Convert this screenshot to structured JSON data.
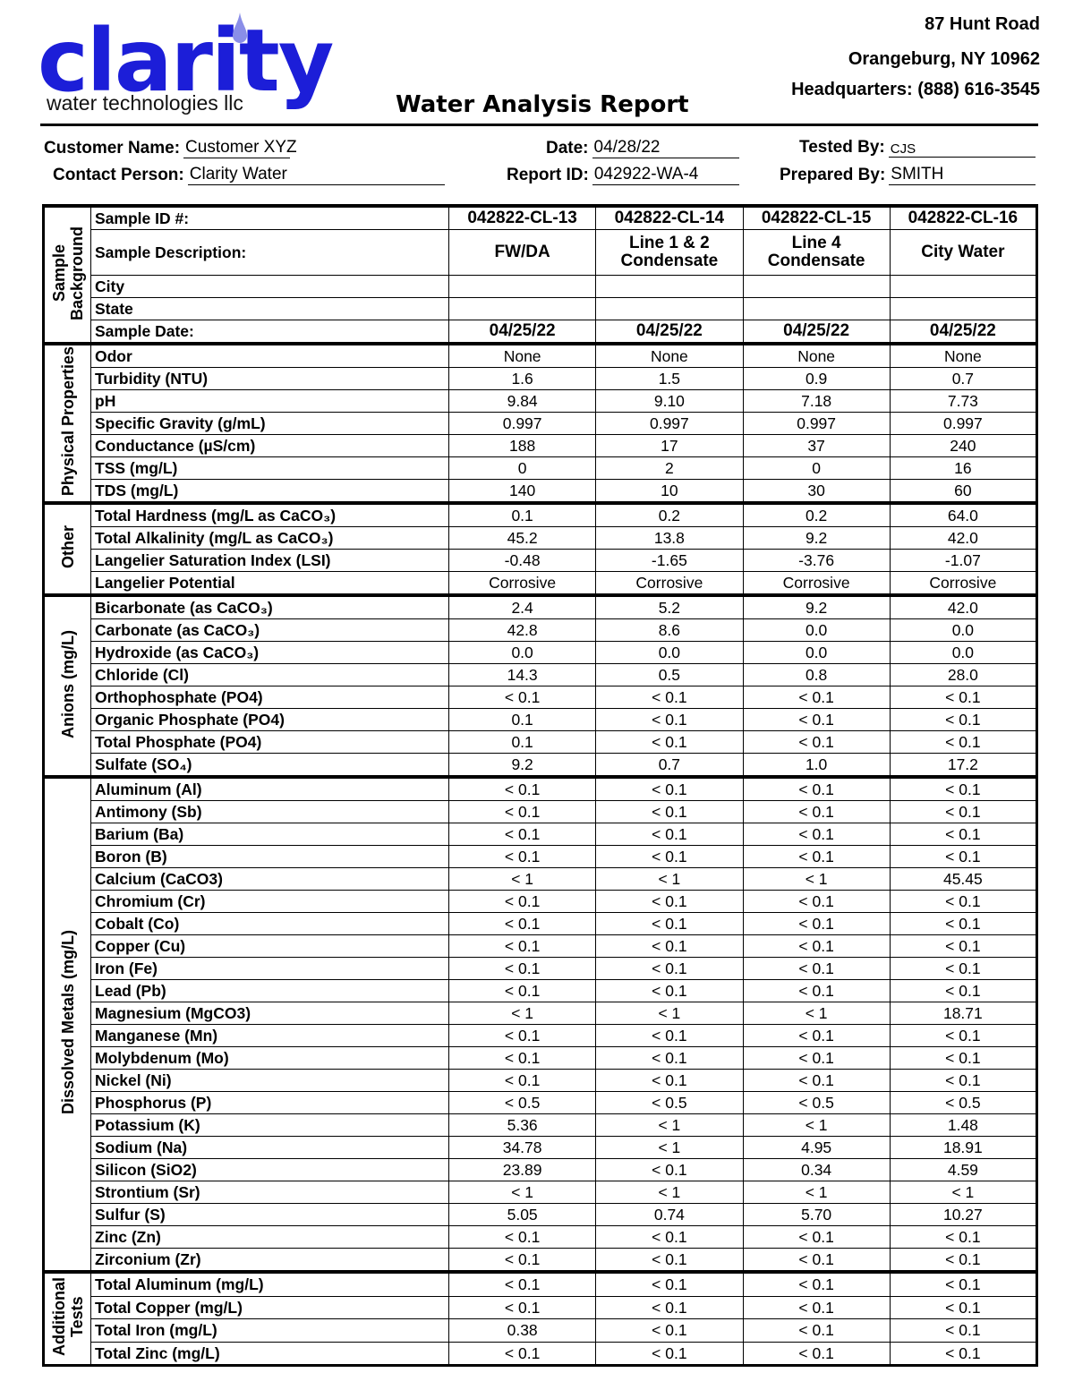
{
  "header": {
    "logo": {
      "name": "clarity",
      "tagline": "water technologies llc"
    },
    "address": [
      "87 Hunt Road",
      "Orangeburg, NY  10962",
      "Headquarters: (888) 616-3545"
    ],
    "title": "Water Analysis Report"
  },
  "fields": [
    {
      "label": "Customer Name:",
      "value": "Customer XYZ"
    },
    {
      "label": "Date:",
      "value": "04/28/22"
    },
    {
      "label": "Tested By:",
      "value": "CJS"
    },
    {
      "label": "Contact Person:",
      "value": "Clarity Water"
    },
    {
      "label": "Report ID:",
      "value": "042922-WA-4"
    },
    {
      "label": "Prepared By:",
      "value": "SMITH"
    }
  ],
  "sections": [
    {
      "title": "Sample Background",
      "rows": [
        {
          "label": "Sample ID #:",
          "values": [
            "042822-CL-13",
            "042822-CL-14",
            "042822-CL-15",
            "042822-CL-16"
          ]
        },
        {
          "label": "Sample Description:",
          "values": [
            "FW/DA",
            "Line 1 & 2 Condensate",
            "Line 4 Condensate",
            "City Water"
          ]
        },
        {
          "label": "City",
          "values": [
            null,
            null,
            null,
            null
          ]
        },
        {
          "label": "State",
          "values": [
            null,
            null,
            null,
            null
          ]
        },
        {
          "label": "Sample Date:",
          "values": [
            "04/25/22",
            "04/25/22",
            "04/25/22",
            "04/25/22"
          ]
        }
      ]
    },
    {
      "title": "Physical Properties",
      "rows": [
        {
          "label": "Odor",
          "values": [
            "None",
            "None",
            "None",
            "None"
          ]
        },
        {
          "label": "Turbidity (NTU)",
          "values": [
            "1.6",
            "1.5",
            "0.9",
            "0.7"
          ]
        },
        {
          "label": "pH",
          "values": [
            "9.84",
            "9.10",
            "7.18",
            "7.73"
          ]
        },
        {
          "label": "Specific Gravity (g/mL)",
          "values": [
            "0.997",
            "0.997",
            "0.997",
            "0.997"
          ]
        },
        {
          "label": "Conductance (µS/cm)",
          "values": [
            "188",
            "17",
            "37",
            "240"
          ]
        },
        {
          "label": "TSS (mg/L)",
          "values": [
            "0",
            "2",
            "0",
            "16"
          ]
        },
        {
          "label": "TDS (mg/L)",
          "values": [
            "140",
            "10",
            "30",
            "60"
          ]
        }
      ]
    },
    {
      "title": "Other",
      "rows": [
        {
          "label": "Total Hardness (mg/L as CaCO₃)",
          "values": [
            "0.1",
            "0.2",
            "0.2",
            "64.0"
          ]
        },
        {
          "label": "Total Alkalinity (mg/L as CaCO₃)",
          "values": [
            "45.2",
            "13.8",
            "9.2",
            "42.0"
          ]
        },
        {
          "label": "Langelier Saturation Index (LSI)",
          "values": [
            "-0.48",
            "-1.65",
            "-3.76",
            "-1.07"
          ]
        },
        {
          "label": "Langelier Potential",
          "values": [
            "Corrosive",
            "Corrosive",
            "Corrosive",
            "Corrosive"
          ]
        }
      ]
    },
    {
      "title": "Anions (mg/L)",
      "rows": [
        {
          "label": "Bicarbonate (as CaCO₃)",
          "values": [
            "2.4",
            "5.2",
            "9.2",
            "42.0"
          ]
        },
        {
          "label": "Carbonate (as CaCO₃)",
          "values": [
            "42.8",
            "8.6",
            "0.0",
            "0.0"
          ]
        },
        {
          "label": "Hydroxide (as CaCO₃)",
          "values": [
            "0.0",
            "0.0",
            "0.0",
            "0.0"
          ]
        },
        {
          "label": "Chloride (Cl)",
          "values": [
            "14.3",
            "0.5",
            "0.8",
            "28.0"
          ]
        },
        {
          "label": "Orthophosphate  (PO4)",
          "values": [
            "< 0.1",
            "< 0.1",
            "< 0.1",
            "< 0.1"
          ]
        },
        {
          "label": "Organic Phosphate (PO4)",
          "values": [
            "0.1",
            "< 0.1",
            "< 0.1",
            "< 0.1"
          ]
        },
        {
          "label": "Total Phosphate (PO4)",
          "values": [
            "0.1",
            "< 0.1",
            "< 0.1",
            "< 0.1"
          ]
        },
        {
          "label": "Sulfate (SO₄)",
          "values": [
            "9.2",
            "0.7",
            "1.0",
            "17.2"
          ]
        }
      ]
    },
    {
      "title": "Dissolved Metals (mg/L)",
      "rows": [
        {
          "label": "Aluminum (Al)",
          "values": [
            "< 0.1",
            "< 0.1",
            "< 0.1",
            "< 0.1"
          ]
        },
        {
          "label": "Antimony (Sb)",
          "values": [
            "< 0.1",
            "< 0.1",
            "< 0.1",
            "< 0.1"
          ]
        },
        {
          "label": "Barium (Ba)",
          "values": [
            "< 0.1",
            "< 0.1",
            "< 0.1",
            "< 0.1"
          ]
        },
        {
          "label": "Boron (B)",
          "values": [
            "< 0.1",
            "< 0.1",
            "< 0.1",
            "< 0.1"
          ]
        },
        {
          "label": "Calcium (CaCO3)",
          "values": [
            "< 1",
            "< 1",
            "< 1",
            "45.45"
          ]
        },
        {
          "label": "Chromium (Cr)",
          "values": [
            "< 0.1",
            "< 0.1",
            "< 0.1",
            "< 0.1"
          ]
        },
        {
          "label": "Cobalt (Co)",
          "values": [
            "< 0.1",
            "< 0.1",
            "< 0.1",
            "< 0.1"
          ]
        },
        {
          "label": "Copper (Cu)",
          "values": [
            "< 0.1",
            "< 0.1",
            "< 0.1",
            "< 0.1"
          ]
        },
        {
          "label": "Iron (Fe)",
          "values": [
            "< 0.1",
            "< 0.1",
            "< 0.1",
            "< 0.1"
          ]
        },
        {
          "label": "Lead (Pb)",
          "values": [
            "< 0.1",
            "< 0.1",
            "< 0.1",
            "< 0.1"
          ]
        },
        {
          "label": "Magnesium (MgCO3)",
          "values": [
            "< 1",
            "< 1",
            "< 1",
            "18.71"
          ]
        },
        {
          "label": "Manganese (Mn)",
          "values": [
            "< 0.1",
            "< 0.1",
            "< 0.1",
            "< 0.1"
          ]
        },
        {
          "label": "Molybdenum (Mo)",
          "values": [
            "< 0.1",
            "< 0.1",
            "< 0.1",
            "< 0.1"
          ]
        },
        {
          "label": "Nickel (Ni)",
          "values": [
            "< 0.1",
            "< 0.1",
            "< 0.1",
            "< 0.1"
          ]
        },
        {
          "label": "Phosphorus (P)",
          "values": [
            "< 0.5",
            "< 0.5",
            "< 0.5",
            "< 0.5"
          ]
        },
        {
          "label": "Potassium (K)",
          "values": [
            "5.36",
            "< 1",
            "< 1",
            "1.48"
          ]
        },
        {
          "label": "Sodium (Na)",
          "values": [
            "34.78",
            "< 1",
            "4.95",
            "18.91"
          ]
        },
        {
          "label": "Silicon (SiO2)",
          "values": [
            "23.89",
            "< 0.1",
            "0.34",
            "4.59"
          ]
        },
        {
          "label": "Strontium (Sr)",
          "values": [
            "< 1",
            "< 1",
            "< 1",
            "< 1"
          ]
        },
        {
          "label": "Sulfur (S)",
          "values": [
            "5.05",
            "0.74",
            "5.70",
            "10.27"
          ]
        },
        {
          "label": "Zinc (Zn)",
          "values": [
            "< 0.1",
            "< 0.1",
            "< 0.1",
            "< 0.1"
          ]
        },
        {
          "label": "Zirconium (Zr)",
          "values": [
            "< 0.1",
            "< 0.1",
            "< 0.1",
            "< 0.1"
          ]
        }
      ]
    },
    {
      "title": "Additional Tests",
      "rows": [
        {
          "label": "Total Aluminum (mg/L)",
          "values": [
            "< 0.1",
            "< 0.1",
            "< 0.1",
            "< 0.1"
          ]
        },
        {
          "label": "Total Copper (mg/L)",
          "values": [
            "< 0.1",
            "< 0.1",
            "< 0.1",
            "< 0.1"
          ]
        },
        {
          "label": "Total Iron (mg/L)",
          "values": [
            "0.38",
            "< 0.1",
            "< 0.1",
            "< 0.1"
          ]
        },
        {
          "label": "Total Zinc (mg/L)",
          "values": [
            "< 0.1",
            "< 0.1",
            "< 0.1",
            "< 0.1"
          ]
        }
      ]
    }
  ]
}
